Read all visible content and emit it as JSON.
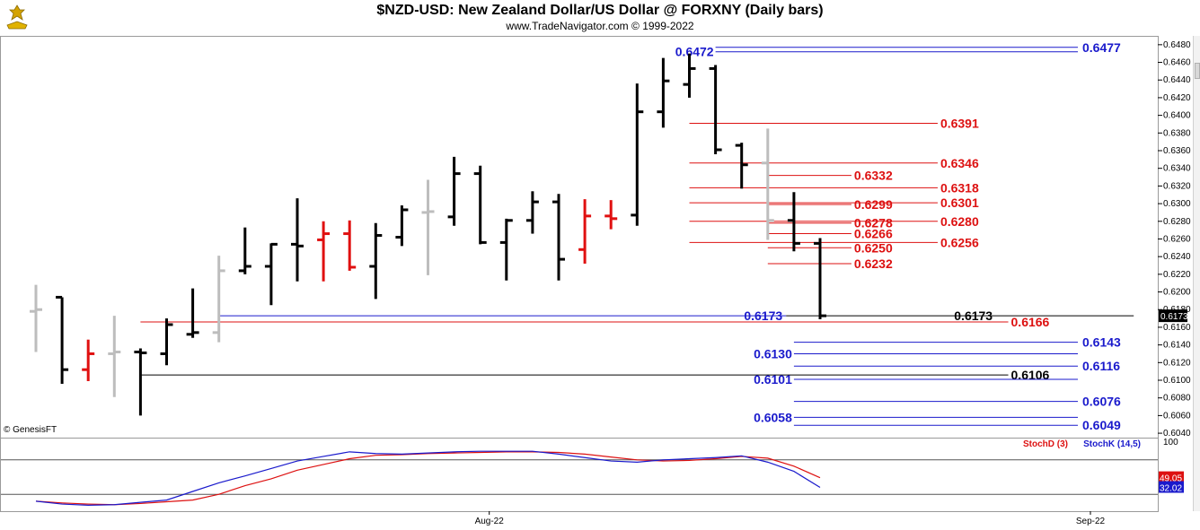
{
  "title": "$NZD-USD:  New Zealand Dollar/US Dollar @ FORXNY  (Daily bars)",
  "subtitle": "www.TradeNavigator.com © 1999-2022",
  "copyright": "© GenesisFT",
  "colors": {
    "up_bar": "#000000",
    "down_bar": "#000000",
    "red_bar": "#e01010",
    "gray_bar": "#bdbdbd",
    "blue_level": "#1a1acc",
    "red_level": "#dd1111",
    "black_level": "#000000",
    "stoch_d": "#dd1111",
    "stoch_k": "#1a1acc"
  },
  "chart_data": [
    {
      "type": "ohlc",
      "title": "$NZD-USD:  New Zealand Dollar/US Dollar @ FORXNY  (Daily bars)",
      "ylim": [
        0.6035,
        0.649
      ],
      "yticks": [
        "0.6480",
        "0.6460",
        "0.6440",
        "0.6420",
        "0.6400",
        "0.6380",
        "0.6360",
        "0.6340",
        "0.6320",
        "0.6300",
        "0.6280",
        "0.6260",
        "0.6240",
        "0.6220",
        "0.6200",
        "0.6180",
        "0.6160",
        "0.6140",
        "0.6120",
        "0.6100",
        "0.6080",
        "0.6060",
        "0.6040"
      ],
      "xticks": [
        {
          "label": "Aug-22",
          "bar": 17
        },
        {
          "label": "Sep-22",
          "bar": 40
        }
      ],
      "last_price": "0.6173",
      "bars": [
        {
          "o": 0.6178,
          "h": 0.6208,
          "l": 0.6132,
          "c": 0.618,
          "color": "gray"
        },
        {
          "o": 0.6194,
          "h": 0.6194,
          "l": 0.6096,
          "c": 0.6112,
          "color": "black"
        },
        {
          "o": 0.6112,
          "h": 0.6146,
          "l": 0.6099,
          "c": 0.613,
          "color": "red"
        },
        {
          "o": 0.613,
          "h": 0.6173,
          "l": 0.6081,
          "c": 0.6132,
          "color": "gray"
        },
        {
          "o": 0.6132,
          "h": 0.6136,
          "l": 0.606,
          "c": 0.6131,
          "color": "black"
        },
        {
          "o": 0.613,
          "h": 0.617,
          "l": 0.6117,
          "c": 0.6163,
          "color": "black"
        },
        {
          "o": 0.6152,
          "h": 0.6204,
          "l": 0.6148,
          "c": 0.6154,
          "color": "black"
        },
        {
          "o": 0.6154,
          "h": 0.6241,
          "l": 0.6143,
          "c": 0.6224,
          "color": "gray"
        },
        {
          "o": 0.6224,
          "h": 0.6273,
          "l": 0.622,
          "c": 0.6229,
          "color": "black"
        },
        {
          "o": 0.6229,
          "h": 0.6255,
          "l": 0.6185,
          "c": 0.6254,
          "color": "black"
        },
        {
          "o": 0.6254,
          "h": 0.6306,
          "l": 0.6212,
          "c": 0.6252,
          "color": "black"
        },
        {
          "o": 0.6259,
          "h": 0.628,
          "l": 0.6212,
          "c": 0.6266,
          "color": "red"
        },
        {
          "o": 0.6266,
          "h": 0.6281,
          "l": 0.6224,
          "c": 0.6228,
          "color": "red"
        },
        {
          "o": 0.6229,
          "h": 0.6278,
          "l": 0.6192,
          "c": 0.6264,
          "color": "black"
        },
        {
          "o": 0.6262,
          "h": 0.6298,
          "l": 0.6252,
          "c": 0.6293,
          "color": "black"
        },
        {
          "o": 0.629,
          "h": 0.6327,
          "l": 0.6219,
          "c": 0.6291,
          "color": "gray"
        },
        {
          "o": 0.6285,
          "h": 0.6353,
          "l": 0.6275,
          "c": 0.6334,
          "color": "black"
        },
        {
          "o": 0.6334,
          "h": 0.6343,
          "l": 0.6254,
          "c": 0.6256,
          "color": "black"
        },
        {
          "o": 0.6256,
          "h": 0.6283,
          "l": 0.6213,
          "c": 0.6281,
          "color": "black"
        },
        {
          "o": 0.6281,
          "h": 0.6314,
          "l": 0.6266,
          "c": 0.6302,
          "color": "black"
        },
        {
          "o": 0.6302,
          "h": 0.6311,
          "l": 0.6213,
          "c": 0.6237,
          "color": "black"
        },
        {
          "o": 0.6248,
          "h": 0.6305,
          "l": 0.6232,
          "c": 0.6286,
          "color": "red"
        },
        {
          "o": 0.6286,
          "h": 0.6304,
          "l": 0.6271,
          "c": 0.6283,
          "color": "red"
        },
        {
          "o": 0.6287,
          "h": 0.6436,
          "l": 0.6275,
          "c": 0.6404,
          "color": "black"
        },
        {
          "o": 0.6404,
          "h": 0.6465,
          "l": 0.6386,
          "c": 0.6439,
          "color": "black"
        },
        {
          "o": 0.6435,
          "h": 0.647,
          "l": 0.642,
          "c": 0.6453,
          "color": "black"
        },
        {
          "o": 0.6453,
          "h": 0.6457,
          "l": 0.6356,
          "c": 0.6361,
          "color": "black"
        },
        {
          "o": 0.6366,
          "h": 0.6369,
          "l": 0.6317,
          "c": 0.6344,
          "color": "black"
        },
        {
          "o": 0.6346,
          "h": 0.6385,
          "l": 0.6259,
          "c": 0.6281,
          "color": "gray"
        },
        {
          "o": 0.6281,
          "h": 0.6313,
          "l": 0.6246,
          "c": 0.6255,
          "color": "black"
        },
        {
          "o": 0.6255,
          "h": 0.6261,
          "l": 0.6169,
          "c": 0.6173,
          "color": "black"
        }
      ],
      "levels": [
        {
          "label": "0.6477",
          "value": 0.6477,
          "color": "blue",
          "from": 26,
          "side": "right"
        },
        {
          "label": "0.6472",
          "value": 0.6472,
          "color": "blue",
          "from": 26,
          "side": "left-of-start"
        },
        {
          "label": "0.6391",
          "value": 0.6391,
          "color": "red",
          "from": 25,
          "to": 34.5,
          "side": "end"
        },
        {
          "label": "0.6346",
          "value": 0.6346,
          "color": "red",
          "from": 25,
          "to": 34.5,
          "side": "end"
        },
        {
          "label": "0.6332",
          "value": 0.6332,
          "color": "red",
          "from": 28,
          "to": 31.2,
          "side": "end"
        },
        {
          "label": "0.6318",
          "value": 0.6318,
          "color": "red",
          "from": 25,
          "to": 34.5,
          "side": "end"
        },
        {
          "label": "0.6301",
          "value": 0.6301,
          "color": "red",
          "from": 25,
          "to": 34.5,
          "side": "end"
        },
        {
          "label": "0.6299",
          "value": 0.6299,
          "color": "red",
          "from": 28,
          "to": 31.2,
          "side": "end"
        },
        {
          "label": "0.6280",
          "value": 0.628,
          "color": "red",
          "from": 25,
          "to": 34.5,
          "side": "end"
        },
        {
          "label": "0.6278",
          "value": 0.6278,
          "color": "red",
          "from": 28,
          "to": 31.2,
          "side": "end"
        },
        {
          "label": "0.6266",
          "value": 0.6266,
          "color": "red",
          "from": 28,
          "to": 31.2,
          "side": "end"
        },
        {
          "label": "0.6256",
          "value": 0.6256,
          "color": "red",
          "from": 25,
          "to": 34.5,
          "side": "end"
        },
        {
          "label": "0.6250",
          "value": 0.625,
          "color": "red",
          "from": 28,
          "to": 31.2,
          "side": "end"
        },
        {
          "label": "0.6232",
          "value": 0.6232,
          "color": "red",
          "from": 28,
          "to": 31.2,
          "side": "end"
        },
        {
          "label": "0.6173",
          "value": 0.6173,
          "color": "blue",
          "from": 7,
          "to": 28.7,
          "side": "left-of-end"
        },
        {
          "label": "0.6173",
          "value": 0.6173,
          "color": "black",
          "from": 28.7,
          "to": 42,
          "side": "mid"
        },
        {
          "label": "0.6166",
          "value": 0.6166,
          "color": "red",
          "from": 4,
          "to": 37.2,
          "side": "end"
        },
        {
          "label": "0.6143",
          "value": 0.6143,
          "color": "blue",
          "from": 29,
          "side": "right"
        },
        {
          "label": "0.6130",
          "value": 0.613,
          "color": "blue",
          "from": 29,
          "side": "left-of-start"
        },
        {
          "label": "0.6116",
          "value": 0.6116,
          "color": "blue",
          "from": 29,
          "side": "right"
        },
        {
          "label": "0.6106",
          "value": 0.6106,
          "color": "black",
          "from": 4,
          "to": 37.2,
          "side": "end"
        },
        {
          "label": "0.6101",
          "value": 0.6101,
          "color": "blue",
          "from": 29,
          "side": "left-of-start"
        },
        {
          "label": "0.6076",
          "value": 0.6076,
          "color": "blue",
          "from": 29,
          "side": "right"
        },
        {
          "label": "0.6058",
          "value": 0.6058,
          "color": "blue",
          "from": 29,
          "side": "left-of-start"
        },
        {
          "label": "0.6049",
          "value": 0.6049,
          "color": "blue",
          "from": 29,
          "side": "right"
        }
      ]
    },
    {
      "type": "line",
      "title": "Stochastic",
      "ylim": [
        0,
        100
      ],
      "yticks": [
        "100"
      ],
      "guides": [
        80,
        20
      ],
      "series": [
        {
          "name": "StochD (3)",
          "color": "red",
          "last": "49.05",
          "values": [
            8,
            5,
            3,
            2,
            4,
            7,
            10,
            20,
            35,
            47,
            62,
            72,
            82,
            88,
            89,
            91,
            92,
            93,
            94,
            94,
            93,
            90,
            85,
            80,
            78,
            79,
            82,
            86,
            83,
            69,
            49
          ]
        },
        {
          "name": "StochK (14,5)",
          "color": "blue",
          "last": "32.02",
          "values": [
            8,
            3,
            1,
            2,
            6,
            10,
            25,
            40,
            52,
            65,
            78,
            86,
            94,
            91,
            90,
            92,
            94,
            95,
            95,
            95,
            90,
            84,
            78,
            76,
            80,
            82,
            84,
            87,
            76,
            60,
            32
          ]
        }
      ]
    }
  ]
}
